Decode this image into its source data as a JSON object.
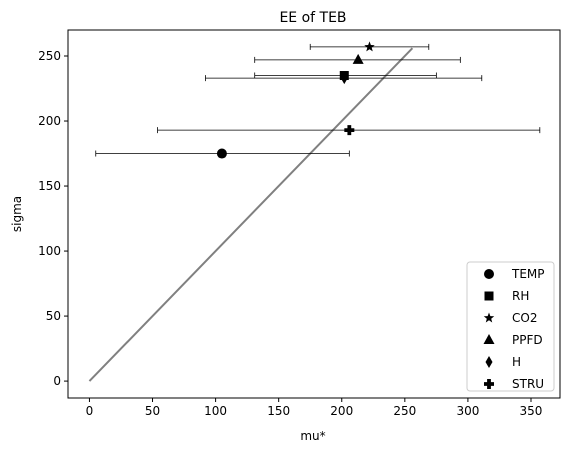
{
  "chart_data": {
    "type": "scatter",
    "title": "EE of TEB",
    "xlabel": "mu*",
    "ylabel": "sigma",
    "xlim": [
      -17,
      373
    ],
    "ylim": [
      -13,
      270
    ],
    "xticks": [
      0,
      50,
      100,
      150,
      200,
      250,
      300,
      350
    ],
    "yticks": [
      0,
      50,
      100,
      150,
      200,
      250
    ],
    "grid": false,
    "legend_position": "bottom-right",
    "reference_line": {
      "color": "#808080",
      "points": [
        [
          0,
          0
        ],
        [
          256,
          256
        ]
      ]
    },
    "series": [
      {
        "name": "TEMP",
        "marker": "circle",
        "x": 105,
        "y": 175,
        "xerr_low": 5,
        "xerr_high": 206
      },
      {
        "name": "RH",
        "marker": "square",
        "x": 202,
        "y": 235,
        "xerr_low": 131,
        "xerr_high": 275
      },
      {
        "name": "CO2",
        "marker": "star",
        "x": 222,
        "y": 257,
        "xerr_low": 175,
        "xerr_high": 269
      },
      {
        "name": "PPFD",
        "marker": "triangle",
        "x": 213,
        "y": 247,
        "xerr_low": 131,
        "xerr_high": 294
      },
      {
        "name": "H",
        "marker": "diamond",
        "x": 202,
        "y": 233,
        "xerr_low": 92,
        "xerr_high": 311
      },
      {
        "name": "STRU",
        "marker": "plus",
        "x": 206,
        "y": 193,
        "xerr_low": 54,
        "xerr_high": 357
      }
    ]
  }
}
